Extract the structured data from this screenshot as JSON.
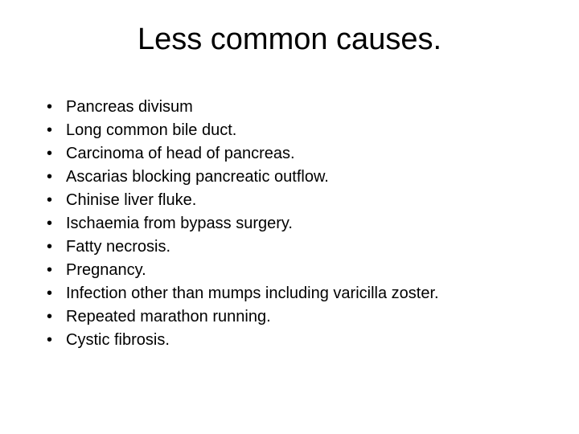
{
  "slide": {
    "title": "Less common causes.",
    "title_fontsize": 38,
    "body_fontsize": 20,
    "background_color": "#ffffff",
    "text_color": "#000000",
    "font_family": "Arial",
    "bullets": [
      "Pancreas divisum",
      "Long common bile duct.",
      "Carcinoma of head of pancreas.",
      "Ascarias blocking pancreatic outflow.",
      "Chinise liver fluke.",
      "Ischaemia from bypass surgery.",
      "Fatty necrosis.",
      "Pregnancy.",
      "Infection other than mumps including varicilla zoster.",
      "Repeated marathon running.",
      "Cystic fibrosis."
    ]
  }
}
